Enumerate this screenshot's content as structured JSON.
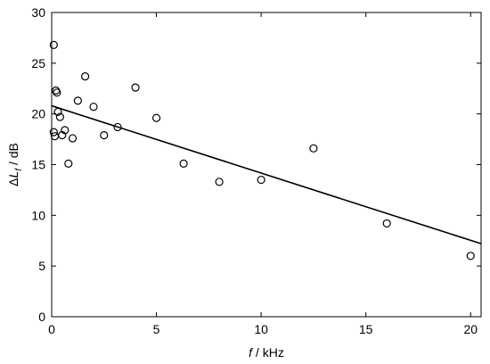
{
  "chart_data": {
    "type": "scatter",
    "xlabel_var": "f",
    "xlabel_unit": " / kHz",
    "ylabel_prefix": "Δ",
    "ylabel_var": "L",
    "ylabel_sub": "f",
    "ylabel_unit": " / dB",
    "xlim": [
      0,
      20.5
    ],
    "ylim": [
      0,
      30
    ],
    "xticks": [
      0,
      5,
      10,
      15,
      20
    ],
    "yticks": [
      0,
      5,
      10,
      15,
      20,
      25,
      30
    ],
    "grid": false,
    "points": [
      {
        "x": 0.1,
        "y": 26.8
      },
      {
        "x": 0.2,
        "y": 22.3
      },
      {
        "x": 0.25,
        "y": 22.1
      },
      {
        "x": 0.1,
        "y": 18.2
      },
      {
        "x": 0.15,
        "y": 17.8
      },
      {
        "x": 0.3,
        "y": 20.2
      },
      {
        "x": 0.4,
        "y": 19.7
      },
      {
        "x": 0.5,
        "y": 17.9
      },
      {
        "x": 0.63,
        "y": 18.4
      },
      {
        "x": 0.8,
        "y": 15.1
      },
      {
        "x": 1.0,
        "y": 17.6
      },
      {
        "x": 1.25,
        "y": 21.3
      },
      {
        "x": 1.6,
        "y": 23.7
      },
      {
        "x": 2.0,
        "y": 20.7
      },
      {
        "x": 2.5,
        "y": 17.9
      },
      {
        "x": 3.15,
        "y": 18.7
      },
      {
        "x": 4.0,
        "y": 22.6
      },
      {
        "x": 5.0,
        "y": 19.6
      },
      {
        "x": 6.3,
        "y": 15.1
      },
      {
        "x": 8.0,
        "y": 13.3
      },
      {
        "x": 10.0,
        "y": 13.5
      },
      {
        "x": 12.5,
        "y": 16.6
      },
      {
        "x": 16.0,
        "y": 9.2
      },
      {
        "x": 20.0,
        "y": 6.0
      }
    ],
    "fit_line": {
      "x": [
        0,
        20.5
      ],
      "y": [
        20.8,
        7.2
      ]
    }
  }
}
